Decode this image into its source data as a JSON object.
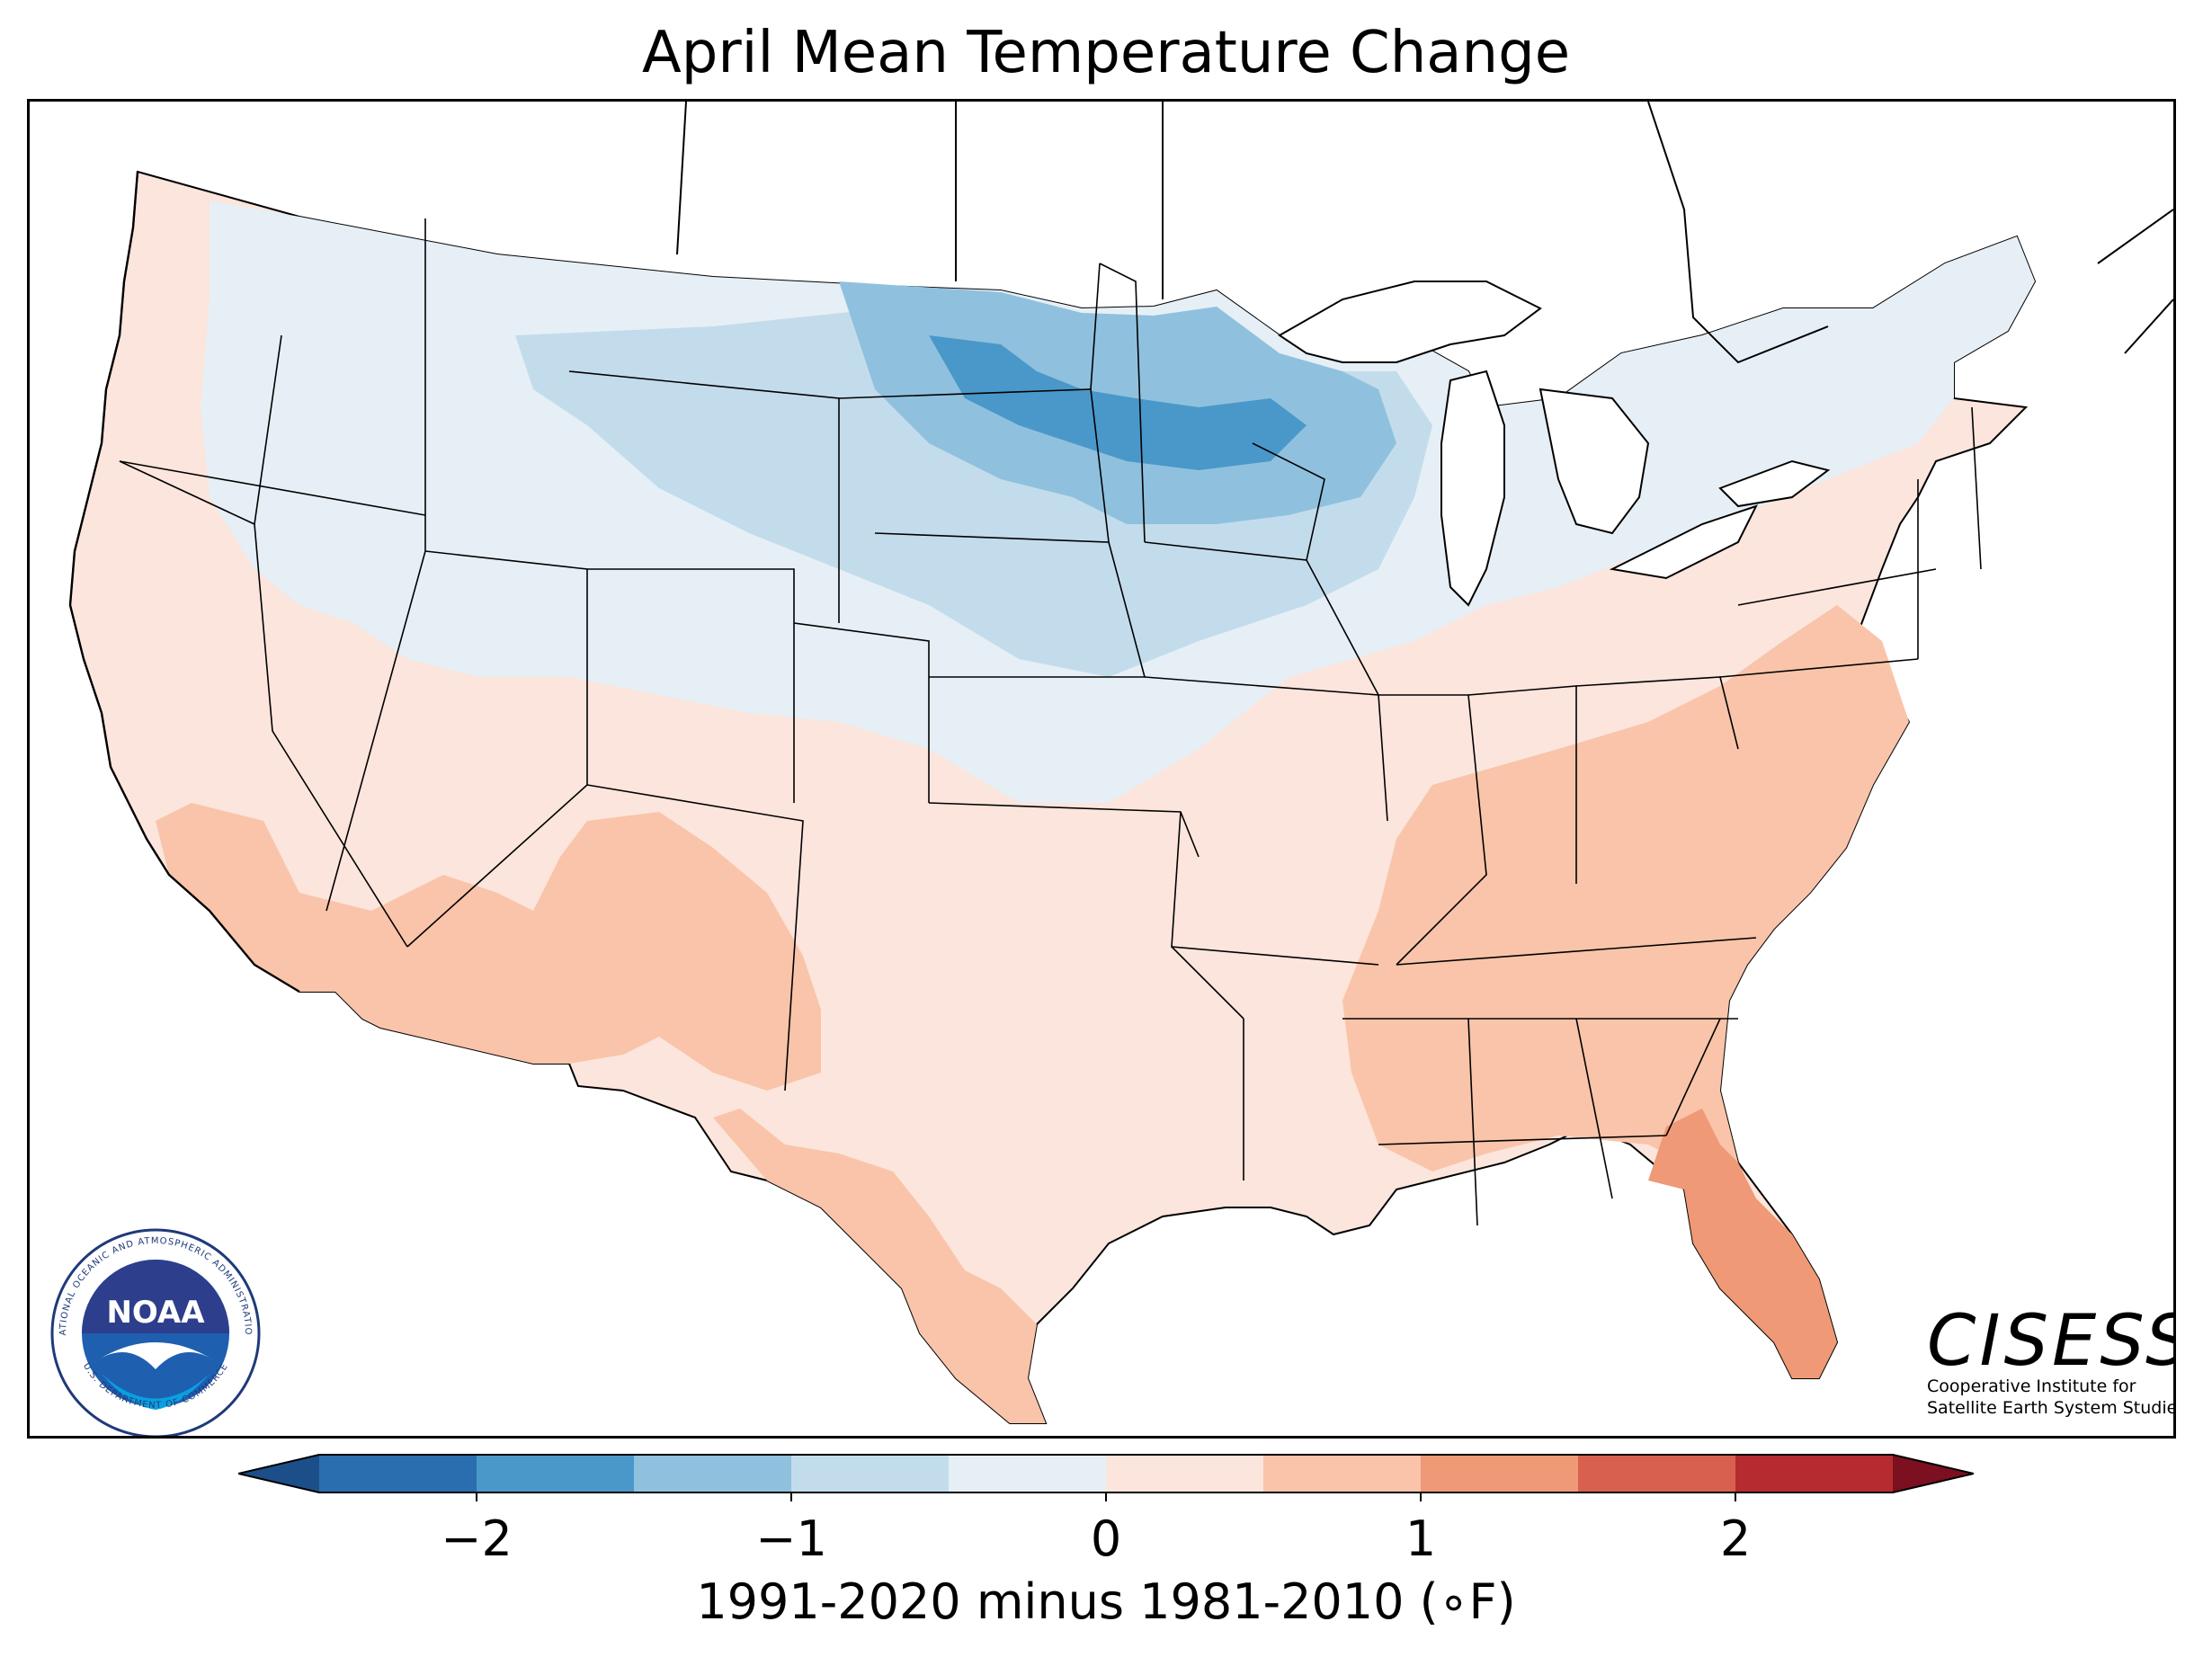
{
  "title": "April Mean Temperature Change",
  "colorbar": {
    "label": "1991-2020 minus 1981-2010 (∘F)",
    "ticks": [
      "−2",
      "−1",
      "0",
      "1",
      "2"
    ],
    "tick_values": [
      -2,
      -1,
      0,
      1,
      2
    ],
    "bins": [
      {
        "min": -2.5,
        "max": -2.0,
        "color": "#2a6eb0"
      },
      {
        "min": -2.0,
        "max": -1.5,
        "color": "#4a98c9"
      },
      {
        "min": -1.5,
        "max": -1.0,
        "color": "#8fc1de"
      },
      {
        "min": -1.0,
        "max": -0.5,
        "color": "#c3dcec"
      },
      {
        "min": -0.5,
        "max": 0.0,
        "color": "#e6eff5"
      },
      {
        "min": 0.0,
        "max": 0.5,
        "color": "#fbe5dc"
      },
      {
        "min": 0.5,
        "max": 1.0,
        "color": "#f9c4aa"
      },
      {
        "min": 1.0,
        "max": 1.5,
        "color": "#ef9977"
      },
      {
        "min": 1.5,
        "max": 2.0,
        "color": "#d8604f"
      },
      {
        "min": 2.0,
        "max": 2.5,
        "color": "#b62b2f"
      }
    ],
    "under_color": "#1c4f8a",
    "over_color": "#7c0f20"
  },
  "logos": {
    "noaa": {
      "text": "NOAA",
      "ring_text": "NATIONAL OCEANIC AND ATMOSPHERIC ADMINISTRATION",
      "ring_text_bottom": "U.S. DEPARTMENT OF COMMERCE"
    },
    "cisess": {
      "name": "CISESS",
      "line1": "Cooperative Institute for",
      "line2": "Satellite Earth System Studies"
    }
  }
}
